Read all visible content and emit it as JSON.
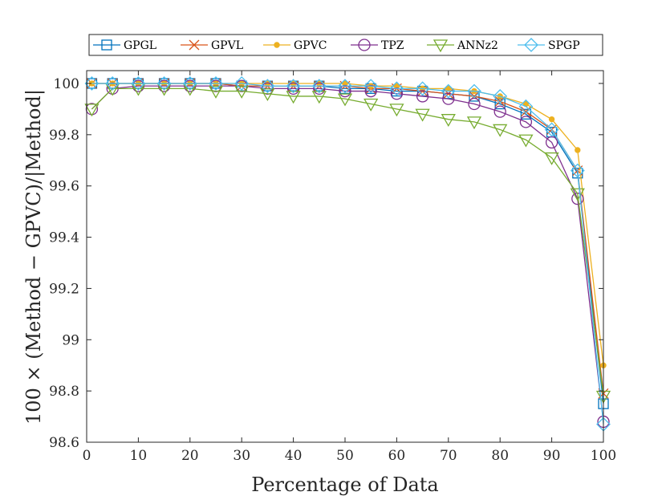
{
  "chart_data": {
    "type": "line",
    "title": "",
    "xlabel": "Percentage of Data",
    "ylabel": "100 × (Method − GPVC)/|Method|",
    "xlim": [
      0,
      100
    ],
    "ylim": [
      98.6,
      100.05
    ],
    "x_ticks": [
      "0",
      "10",
      "20",
      "30",
      "40",
      "50",
      "60",
      "70",
      "80",
      "90",
      "100"
    ],
    "y_ticks": [
      "98.6",
      "98.8",
      "99",
      "99.2",
      "99.4",
      "99.6",
      "99.8",
      "100"
    ],
    "x": [
      1,
      5,
      10,
      15,
      20,
      25,
      30,
      35,
      40,
      45,
      50,
      55,
      60,
      65,
      70,
      75,
      80,
      85,
      90,
      95,
      100
    ],
    "legend_position": "top",
    "series": [
      {
        "name": "GPGL",
        "color": "#0072BD",
        "marker": "square",
        "values": [
          100.0,
          100.0,
          100.0,
          100.0,
          100.0,
          100.0,
          99.99,
          99.99,
          99.99,
          99.99,
          99.98,
          99.98,
          99.97,
          99.97,
          99.96,
          99.95,
          99.92,
          99.88,
          99.81,
          99.65,
          98.75
        ]
      },
      {
        "name": "GPVL",
        "color": "#D95319",
        "marker": "x",
        "values": [
          100.0,
          100.0,
          100.0,
          100.0,
          100.0,
          100.0,
          99.99,
          99.99,
          99.99,
          99.99,
          99.99,
          99.98,
          99.98,
          99.97,
          99.96,
          99.95,
          99.93,
          99.89,
          99.82,
          99.66,
          98.79
        ]
      },
      {
        "name": "GPVC",
        "color": "#EDB120",
        "marker": "dot",
        "values": [
          100.0,
          100.0,
          100.0,
          100.0,
          100.0,
          100.0,
          100.0,
          100.0,
          100.0,
          100.0,
          100.0,
          99.99,
          99.99,
          99.98,
          99.98,
          99.97,
          99.95,
          99.92,
          99.86,
          99.74,
          98.9
        ]
      },
      {
        "name": "TPZ",
        "color": "#7E2F8E",
        "marker": "circle",
        "values": [
          99.9,
          99.98,
          99.99,
          99.99,
          99.99,
          99.99,
          99.99,
          99.98,
          99.98,
          99.98,
          99.97,
          99.97,
          99.96,
          99.95,
          99.94,
          99.92,
          99.89,
          99.85,
          99.77,
          99.55,
          98.68
        ]
      },
      {
        "name": "ANNz2",
        "color": "#77AC30",
        "marker": "triangle-down",
        "values": [
          99.9,
          99.98,
          99.98,
          99.98,
          99.98,
          99.97,
          99.97,
          99.96,
          99.95,
          99.95,
          99.94,
          99.92,
          99.9,
          99.88,
          99.86,
          99.85,
          99.82,
          99.78,
          99.71,
          99.57,
          98.78
        ]
      },
      {
        "name": "SPGP",
        "color": "#4DBEEE",
        "marker": "diamond",
        "values": [
          100.0,
          100.0,
          100.0,
          100.0,
          100.0,
          100.0,
          100.0,
          99.99,
          99.99,
          99.99,
          99.99,
          99.99,
          99.98,
          99.98,
          99.97,
          99.97,
          99.95,
          99.91,
          99.82,
          99.66,
          98.67
        ]
      }
    ]
  }
}
